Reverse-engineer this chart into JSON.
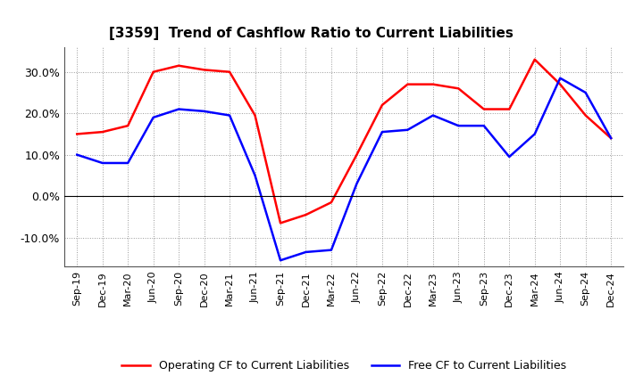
{
  "title": "[3359]  Trend of Cashflow Ratio to Current Liabilities",
  "x_labels": [
    "Sep-19",
    "Dec-19",
    "Mar-20",
    "Jun-20",
    "Sep-20",
    "Dec-20",
    "Mar-21",
    "Jun-21",
    "Sep-21",
    "Dec-21",
    "Mar-22",
    "Jun-22",
    "Sep-22",
    "Dec-22",
    "Mar-23",
    "Jun-23",
    "Sep-23",
    "Dec-23",
    "Mar-24",
    "Jun-24",
    "Sep-24",
    "Dec-24"
  ],
  "operating_cf": [
    15.0,
    15.5,
    17.0,
    30.0,
    31.5,
    30.5,
    30.0,
    19.5,
    -6.5,
    -4.5,
    -1.5,
    10.0,
    22.0,
    27.0,
    27.0,
    26.0,
    21.0,
    21.0,
    33.0,
    27.0,
    19.5,
    14.0
  ],
  "free_cf": [
    10.0,
    8.0,
    8.0,
    19.0,
    21.0,
    20.5,
    19.5,
    5.0,
    -15.5,
    -13.5,
    -13.0,
    3.0,
    15.5,
    16.0,
    19.5,
    17.0,
    17.0,
    9.5,
    15.0,
    28.5,
    25.0,
    14.0
  ],
  "operating_color": "#ff0000",
  "free_color": "#0000ff",
  "ylim": [
    -17,
    36
  ],
  "yticks": [
    -10.0,
    0.0,
    10.0,
    20.0,
    30.0
  ],
  "ytick_labels": [
    "-10.0%",
    "0.0%",
    "10.0%",
    "20.0%",
    "30.0%"
  ],
  "background_color": "#ffffff",
  "plot_bg_color": "#ffffff",
  "grid_color": "#aaaaaa",
  "legend_operating": "Operating CF to Current Liabilities",
  "legend_free": "Free CF to Current Liabilities",
  "title_fontsize": 11,
  "tick_fontsize": 8,
  "ytick_fontsize": 9,
  "line_width": 1.8
}
